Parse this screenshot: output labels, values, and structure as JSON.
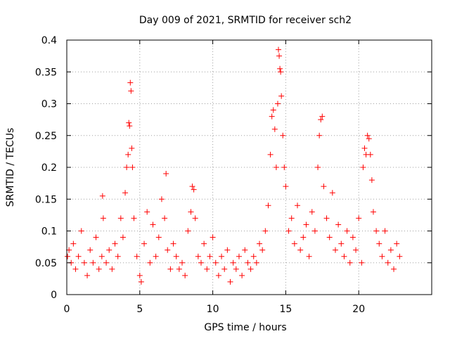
{
  "chart_data": {
    "type": "scatter",
    "title": "Day 009 of 2021, SRMTID for receiver sch2",
    "xlabel": "GPS time / hours",
    "ylabel": "SRMTID / TECUs",
    "xlim": [
      0,
      25
    ],
    "ylim": [
      0,
      0.4
    ],
    "x_ticks": [
      0,
      5,
      10,
      15,
      20
    ],
    "x_tick_labels": [
      "0",
      "5",
      "10",
      "15",
      "20"
    ],
    "y_ticks": [
      0,
      0.05,
      0.1,
      0.15,
      0.2,
      0.25,
      0.3,
      0.35,
      0.4
    ],
    "y_tick_labels": [
      "0",
      "0.05",
      "0.1",
      "0.15",
      "0.2",
      "0.25",
      "0.3",
      "0.35",
      "0.4"
    ],
    "grid": true,
    "marker": "+",
    "series": [
      {
        "name": "SRMTID",
        "color": "#ff0000",
        "x": [
          0.05,
          0.15,
          0.3,
          0.45,
          0.6,
          0.8,
          1.0,
          1.2,
          1.4,
          1.6,
          1.8,
          2.0,
          2.2,
          2.4,
          2.45,
          2.5,
          2.7,
          2.9,
          3.1,
          3.3,
          3.5,
          3.7,
          3.85,
          4.0,
          4.1,
          4.2,
          4.25,
          4.3,
          4.35,
          4.4,
          4.45,
          4.5,
          4.6,
          4.8,
          5.0,
          5.1,
          5.3,
          5.5,
          5.7,
          5.9,
          6.1,
          6.3,
          6.5,
          6.7,
          6.8,
          6.9,
          7.1,
          7.3,
          7.5,
          7.7,
          7.9,
          8.1,
          8.3,
          8.5,
          8.6,
          8.7,
          8.8,
          9.0,
          9.2,
          9.4,
          9.6,
          9.8,
          10.0,
          10.2,
          10.4,
          10.6,
          10.8,
          11.0,
          11.2,
          11.4,
          11.6,
          11.8,
          12.0,
          12.2,
          12.4,
          12.6,
          12.8,
          13.0,
          13.2,
          13.4,
          13.6,
          13.8,
          13.95,
          14.05,
          14.15,
          14.25,
          14.35,
          14.45,
          14.5,
          14.55,
          14.6,
          14.65,
          14.7,
          14.8,
          14.9,
          15.0,
          15.2,
          15.4,
          15.6,
          15.8,
          16.0,
          16.2,
          16.4,
          16.6,
          16.8,
          17.0,
          17.2,
          17.3,
          17.4,
          17.5,
          17.6,
          17.8,
          18.0,
          18.2,
          18.4,
          18.6,
          18.8,
          19.0,
          19.2,
          19.4,
          19.6,
          19.8,
          20.0,
          20.2,
          20.3,
          20.4,
          20.5,
          20.6,
          20.7,
          20.8,
          20.9,
          21.0,
          21.2,
          21.4,
          21.6,
          21.8,
          22.0,
          22.2,
          22.4,
          22.6,
          22.8
        ],
        "y": [
          0.06,
          0.07,
          0.05,
          0.08,
          0.04,
          0.06,
          0.1,
          0.05,
          0.03,
          0.07,
          0.05,
          0.09,
          0.04,
          0.06,
          0.155,
          0.12,
          0.05,
          0.07,
          0.04,
          0.08,
          0.06,
          0.12,
          0.09,
          0.16,
          0.2,
          0.22,
          0.27,
          0.265,
          0.333,
          0.32,
          0.23,
          0.2,
          0.12,
          0.06,
          0.03,
          0.02,
          0.08,
          0.13,
          0.05,
          0.11,
          0.06,
          0.09,
          0.15,
          0.12,
          0.19,
          0.07,
          0.04,
          0.08,
          0.06,
          0.04,
          0.05,
          0.03,
          0.1,
          0.13,
          0.17,
          0.165,
          0.12,
          0.06,
          0.05,
          0.08,
          0.04,
          0.06,
          0.09,
          0.05,
          0.03,
          0.06,
          0.04,
          0.07,
          0.02,
          0.05,
          0.04,
          0.06,
          0.03,
          0.07,
          0.05,
          0.04,
          0.06,
          0.05,
          0.08,
          0.07,
          0.1,
          0.14,
          0.22,
          0.28,
          0.29,
          0.26,
          0.2,
          0.3,
          0.385,
          0.375,
          0.355,
          0.35,
          0.312,
          0.25,
          0.2,
          0.17,
          0.1,
          0.12,
          0.08,
          0.14,
          0.07,
          0.09,
          0.11,
          0.06,
          0.13,
          0.1,
          0.2,
          0.25,
          0.275,
          0.28,
          0.17,
          0.12,
          0.09,
          0.16,
          0.07,
          0.11,
          0.08,
          0.06,
          0.1,
          0.05,
          0.09,
          0.07,
          0.12,
          0.05,
          0.2,
          0.23,
          0.22,
          0.25,
          0.245,
          0.22,
          0.18,
          0.13,
          0.1,
          0.08,
          0.06,
          0.1,
          0.05,
          0.07,
          0.04,
          0.08,
          0.06
        ]
      }
    ]
  }
}
